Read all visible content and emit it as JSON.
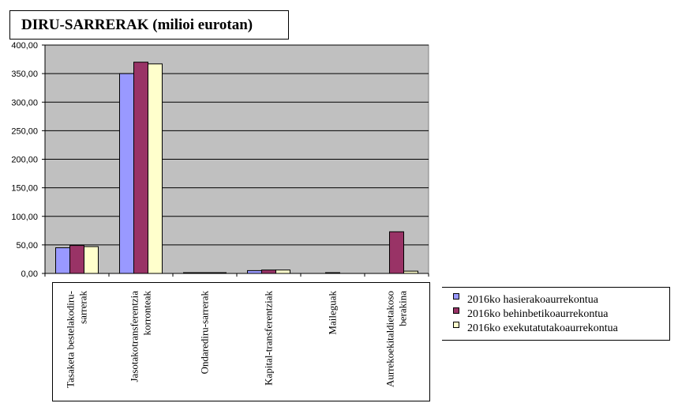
{
  "chart_data": {
    "type": "bar",
    "title": "DIRU-SARRERAK (milioi  eurotan)",
    "categories": [
      [
        "Tasaketa bestelakodiru-",
        "sarrerak"
      ],
      [
        "Jasotakotransferentzia",
        "korronteak"
      ],
      [
        "Ondarediru-sarrerak"
      ],
      [
        "Kapital-transferentziak"
      ],
      [
        "Maileguak"
      ],
      [
        "Aurrekoekitaldietakoso",
        "berakina"
      ]
    ],
    "series": [
      {
        "name": "2016ko hasierakoaurrekontua",
        "color": "#9999ff",
        "values": [
          45,
          350,
          0.5,
          5,
          0,
          0
        ]
      },
      {
        "name": "2016ko behinbetikoaurrekontua",
        "color": "#993366",
        "values": [
          49,
          370,
          0.5,
          6,
          0.5,
          73
        ]
      },
      {
        "name": "2016ko exekutatutakoaurrekontua",
        "color": "#ffffcc",
        "values": [
          47,
          367,
          0.5,
          6,
          0,
          4
        ]
      }
    ],
    "y_ticks": [
      "0,00",
      "50,00",
      "100,00",
      "150,00",
      "200,00",
      "250,00",
      "300,00",
      "350,00",
      "400,00"
    ],
    "ylim": [
      0,
      400
    ],
    "grid": true,
    "plot_background": "#c0c0c0",
    "legend_position": "bottom-right"
  }
}
